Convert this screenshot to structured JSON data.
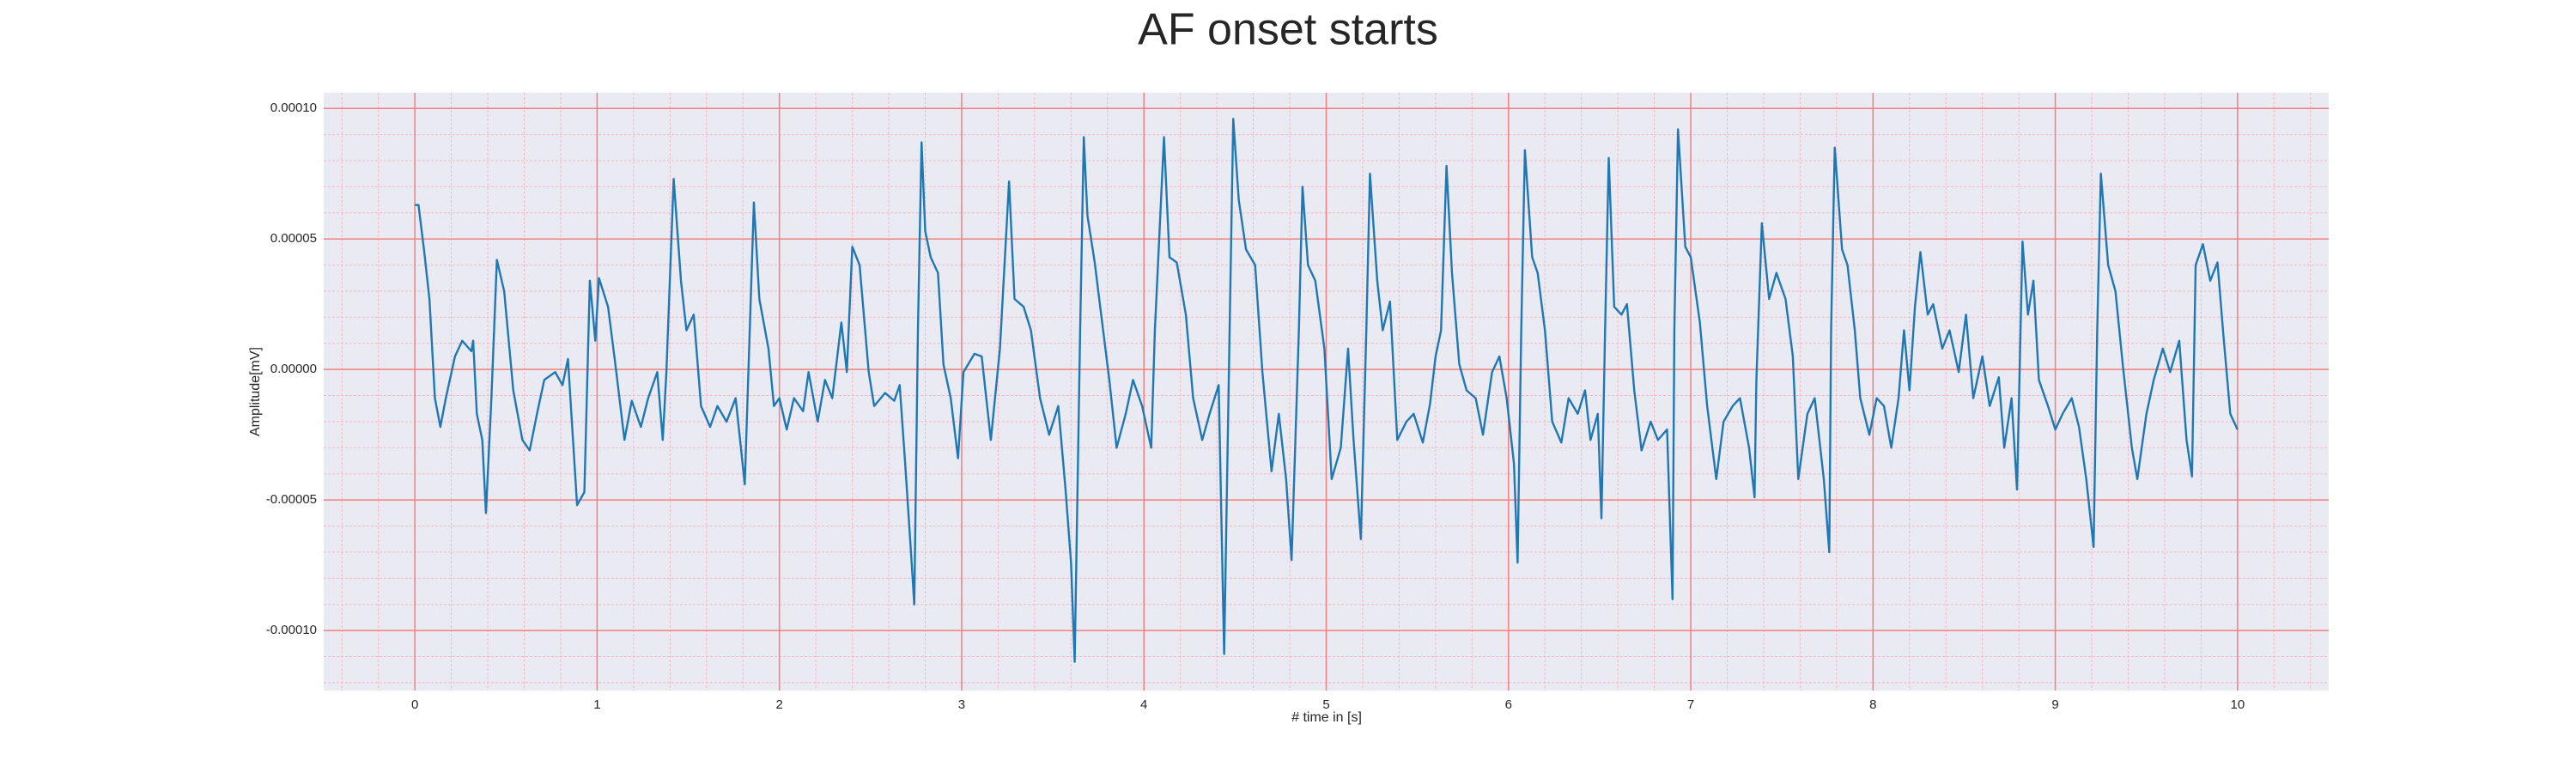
{
  "chart_data": {
    "type": "line",
    "title": "AF onset starts",
    "xlabel": "# time in [s]",
    "ylabel": "Amplitude[mV]",
    "background": "#eaeaf2",
    "grid": true,
    "grid_color": "#f08080",
    "minor_grid": true,
    "minor_grid_color": "#f5b8c4",
    "xlim": [
      -0.5,
      10.5
    ],
    "ylim": [
      -0.000123,
      0.000106
    ],
    "xticks": [
      0,
      1,
      2,
      3,
      4,
      5,
      6,
      7,
      8,
      9,
      10
    ],
    "yticks": [
      {
        "value": -0.0001,
        "label": "-0.00010"
      },
      {
        "value": -5e-05,
        "label": "-0.00005"
      },
      {
        "value": 0,
        "label": "0.00000"
      },
      {
        "value": 5e-05,
        "label": "0.00005"
      },
      {
        "value": 0.0001,
        "label": "0.00010"
      }
    ],
    "series": [
      {
        "color": "#1f77b4",
        "x": [
          0,
          0.02,
          0.05,
          0.08,
          0.11,
          0.14,
          0.17,
          0.22,
          0.26,
          0.31,
          0.32,
          0.34,
          0.37,
          0.39,
          0.42,
          0.45,
          0.49,
          0.54,
          0.59,
          0.63,
          0.67,
          0.71,
          0.77,
          0.81,
          0.84,
          0.89,
          0.93,
          0.96,
          0.99,
          1.01,
          1.06,
          1.1,
          1.15,
          1.19,
          1.24,
          1.28,
          1.33,
          1.36,
          1.38,
          1.42,
          1.46,
          1.49,
          1.53,
          1.57,
          1.62,
          1.66,
          1.71,
          1.76,
          1.81,
          1.86,
          1.89,
          1.94,
          1.97,
          2.0,
          2.04,
          2.08,
          2.13,
          2.16,
          2.21,
          2.25,
          2.29,
          2.34,
          2.37,
          2.4,
          2.44,
          2.49,
          2.52,
          2.58,
          2.63,
          2.66,
          2.69,
          2.72,
          2.74,
          2.76,
          2.78,
          2.8,
          2.83,
          2.87,
          2.9,
          2.94,
          2.98,
          3.01,
          3.07,
          3.11,
          3.16,
          3.21,
          3.26,
          3.29,
          3.34,
          3.38,
          3.43,
          3.48,
          3.53,
          3.57,
          3.6,
          3.62,
          3.65,
          3.67,
          3.69,
          3.73,
          3.76,
          3.81,
          3.85,
          3.9,
          3.94,
          3.99,
          4.04,
          4.06,
          4.11,
          4.14,
          4.18,
          4.23,
          4.27,
          4.32,
          4.36,
          4.41,
          4.44,
          4.47,
          4.49,
          4.52,
          4.56,
          4.61,
          4.65,
          4.7,
          4.74,
          4.78,
          4.81,
          4.85,
          4.87,
          4.9,
          4.94,
          4.99,
          5.03,
          5.08,
          5.12,
          5.15,
          5.19,
          5.22,
          5.24,
          5.28,
          5.31,
          5.35,
          5.39,
          5.44,
          5.48,
          5.53,
          5.57,
          5.6,
          5.63,
          5.66,
          5.69,
          5.73,
          5.77,
          5.82,
          5.86,
          5.91,
          5.95,
          5.99,
          6.03,
          6.05,
          6.07,
          6.09,
          6.13,
          6.16,
          6.2,
          6.24,
          6.29,
          6.33,
          6.38,
          6.42,
          6.45,
          6.49,
          6.51,
          6.53,
          6.55,
          6.58,
          6.62,
          6.65,
          6.69,
          6.73,
          6.78,
          6.82,
          6.87,
          6.9,
          6.91,
          6.93,
          6.97,
          7.0,
          7.05,
          7.09,
          7.14,
          7.18,
          7.23,
          7.27,
          7.32,
          7.35,
          7.36,
          7.39,
          7.43,
          7.47,
          7.52,
          7.56,
          7.59,
          7.64,
          7.68,
          7.73,
          7.76,
          7.77,
          7.79,
          7.83,
          7.86,
          7.9,
          7.93,
          7.98,
          8.02,
          8.06,
          8.1,
          8.14,
          8.17,
          8.2,
          8.23,
          8.26,
          8.3,
          8.33,
          8.38,
          8.42,
          8.47,
          8.51,
          8.55,
          8.6,
          8.64,
          8.69,
          8.72,
          8.76,
          8.79,
          8.82,
          8.85,
          8.88,
          8.91,
          8.96,
          9.0,
          9.04,
          9.09,
          9.13,
          9.17,
          9.21,
          9.23,
          9.25,
          9.29,
          9.33,
          9.37,
          9.42,
          9.45,
          9.5,
          9.54,
          9.59,
          9.63,
          9.68,
          9.72,
          9.75,
          9.77,
          9.81,
          9.85,
          9.89,
          9.92,
          9.96,
          10.0
        ],
        "values": [
          6.3e-05,
          6.3e-05,
          4.6e-05,
          2.7e-05,
          -1.1e-05,
          -2.2e-05,
          -1.1e-05,
          5e-06,
          1.1e-05,
          7e-06,
          1.1e-05,
          -1.7e-05,
          -2.7e-05,
          -5.5e-05,
          -1.1e-05,
          4.2e-05,
          3e-05,
          -8e-06,
          -2.7e-05,
          -3.1e-05,
          -1.7e-05,
          -4e-06,
          -1e-06,
          -6e-06,
          4e-06,
          -5.2e-05,
          -4.7e-05,
          3.4e-05,
          1.1e-05,
          3.5e-05,
          2.4e-05,
          2e-06,
          -2.7e-05,
          -1.2e-05,
          -2.2e-05,
          -1.1e-05,
          -1e-06,
          -2.7e-05,
          -1e-06,
          7.3e-05,
          3.4e-05,
          1.5e-05,
          2.1e-05,
          -1.4e-05,
          -2.2e-05,
          -1.4e-05,
          -2e-05,
          -1.1e-05,
          -4.4e-05,
          6.4e-05,
          2.7e-05,
          8e-06,
          -1.4e-05,
          -1.1e-05,
          -2.3e-05,
          -1.1e-05,
          -1.6e-05,
          -1e-06,
          -2e-05,
          -4e-06,
          -1.1e-05,
          1.8e-05,
          -1e-06,
          4.7e-05,
          4e-05,
          -1e-06,
          -1.4e-05,
          -9e-06,
          -1.2e-05,
          -6e-06,
          -3.6e-05,
          -6.8e-05,
          -9e-05,
          1.5e-05,
          8.7e-05,
          5.3e-05,
          4.3e-05,
          3.7e-05,
          2e-06,
          -1.1e-05,
          -3.4e-05,
          -1e-06,
          6e-06,
          5e-06,
          -2.7e-05,
          8e-06,
          7.2e-05,
          2.7e-05,
          2.4e-05,
          1.5e-05,
          -1.1e-05,
          -2.5e-05,
          -1.4e-05,
          -4.6e-05,
          -7.4e-05,
          -0.000112,
          1.5e-05,
          8.9e-05,
          5.9e-05,
          4.1e-05,
          2.4e-05,
          -4e-06,
          -3e-05,
          -1.7e-05,
          -4e-06,
          -1.4e-05,
          -3e-05,
          1.5e-05,
          8.9e-05,
          4.3e-05,
          4.1e-05,
          2.1e-05,
          -1.1e-05,
          -2.7e-05,
          -1.7e-05,
          -6e-06,
          -0.000109,
          1.5e-05,
          9.6e-05,
          6.5e-05,
          4.6e-05,
          4e-05,
          -1e-06,
          -3.9e-05,
          -1.7e-05,
          -4.2e-05,
          -7.3e-05,
          1.5e-05,
          7e-05,
          4e-05,
          3.4e-05,
          8e-06,
          -4.2e-05,
          -3e-05,
          8e-06,
          -2.7e-05,
          -6.5e-05,
          1.5e-05,
          7.5e-05,
          3.4e-05,
          1.5e-05,
          2.6e-05,
          -2.7e-05,
          -2e-05,
          -1.7e-05,
          -2.8e-05,
          -1.3e-05,
          5e-06,
          1.5e-05,
          7.8e-05,
          3.7e-05,
          2e-06,
          -8e-06,
          -1.1e-05,
          -2.5e-05,
          -1e-06,
          5e-06,
          -1.1e-05,
          -3.6e-05,
          -7.4e-05,
          1.5e-05,
          8.4e-05,
          4.3e-05,
          3.7e-05,
          1.5e-05,
          -2e-05,
          -2.8e-05,
          -1.1e-05,
          -1.7e-05,
          -8e-06,
          -2.7e-05,
          -1.7e-05,
          -5.7e-05,
          1.5e-05,
          8.1e-05,
          2.4e-05,
          2.1e-05,
          2.5e-05,
          -8e-06,
          -3.1e-05,
          -2e-05,
          -2.7e-05,
          -2.3e-05,
          -8.8e-05,
          1.5e-05,
          9.2e-05,
          4.7e-05,
          4.3e-05,
          1.8e-05,
          -1.4e-05,
          -4.2e-05,
          -2e-05,
          -1.4e-05,
          -1.1e-05,
          -3e-05,
          -4.9e-05,
          -4e-06,
          5.6e-05,
          2.7e-05,
          3.7e-05,
          2.7e-05,
          5e-06,
          -4.2e-05,
          -1.7e-05,
          -1.1e-05,
          -4.2e-05,
          -7e-05,
          1.5e-05,
          8.5e-05,
          4.6e-05,
          4e-05,
          1.5e-05,
          -1.1e-05,
          -2.5e-05,
          -1.1e-05,
          -1.4e-05,
          -3e-05,
          -1.1e-05,
          1.5e-05,
          -8e-06,
          2.4e-05,
          4.5e-05,
          2.1e-05,
          2.5e-05,
          8e-06,
          1.5e-05,
          -1e-06,
          2.1e-05,
          -1.1e-05,
          5e-06,
          -1.4e-05,
          -3e-06,
          -3e-05,
          -1.1e-05,
          -4.6e-05,
          4.9e-05,
          2.1e-05,
          3.4e-05,
          -4e-06,
          -1.4e-05,
          -2.3e-05,
          -1.7e-05,
          -1.1e-05,
          -2.2e-05,
          -4.2e-05,
          -6.8e-05,
          1.5e-05,
          7.5e-05,
          4e-05,
          3e-05,
          2e-06,
          -3e-05,
          -4.2e-05,
          -1.7e-05,
          -4e-06,
          8e-06,
          -1e-06,
          1.1e-05,
          -2.7e-05,
          -4.1e-05,
          4e-05,
          4.8e-05,
          3.4e-05,
          4.1e-05,
          1.5e-05,
          -1.7e-05,
          -2.3e-05
        ]
      }
    ]
  }
}
